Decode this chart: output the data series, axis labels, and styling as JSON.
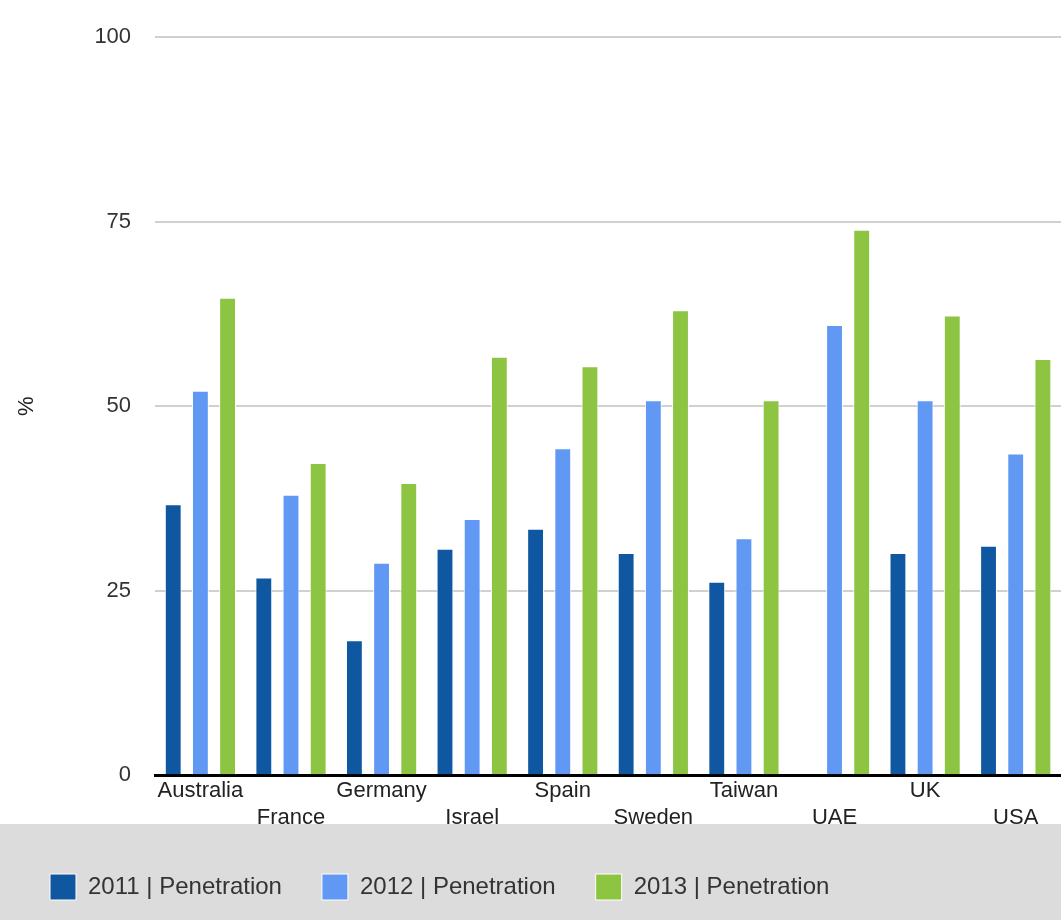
{
  "chart_data": {
    "type": "bar",
    "ylabel": "%",
    "categories": [
      "Australia",
      "France",
      "Germany",
      "Israel",
      "Spain",
      "Sweden",
      "Taiwan",
      "UAE",
      "UK",
      "USA"
    ],
    "series": [
      {
        "name": "2011 | Penetration",
        "color": "#0f58a1",
        "values": [
          36.7,
          26.8,
          18.3,
          30.7,
          33.4,
          30.1,
          26.2,
          null,
          30.1,
          31.1
        ]
      },
      {
        "name": "2012 | Penetration",
        "color": "#6198f4",
        "values": [
          52.1,
          38.0,
          28.8,
          34.7,
          44.3,
          50.8,
          32.1,
          61.0,
          50.8,
          43.6
        ]
      },
      {
        "name": "2013 | Penetration",
        "color": "#8dc442",
        "values": [
          64.7,
          42.3,
          39.6,
          56.7,
          55.4,
          63.0,
          50.8,
          73.9,
          62.3,
          56.4
        ]
      }
    ],
    "ylim": [
      0,
      100
    ],
    "yticks": [
      0,
      25,
      50,
      75,
      100
    ],
    "grid": "y",
    "legend": "bottom"
  }
}
